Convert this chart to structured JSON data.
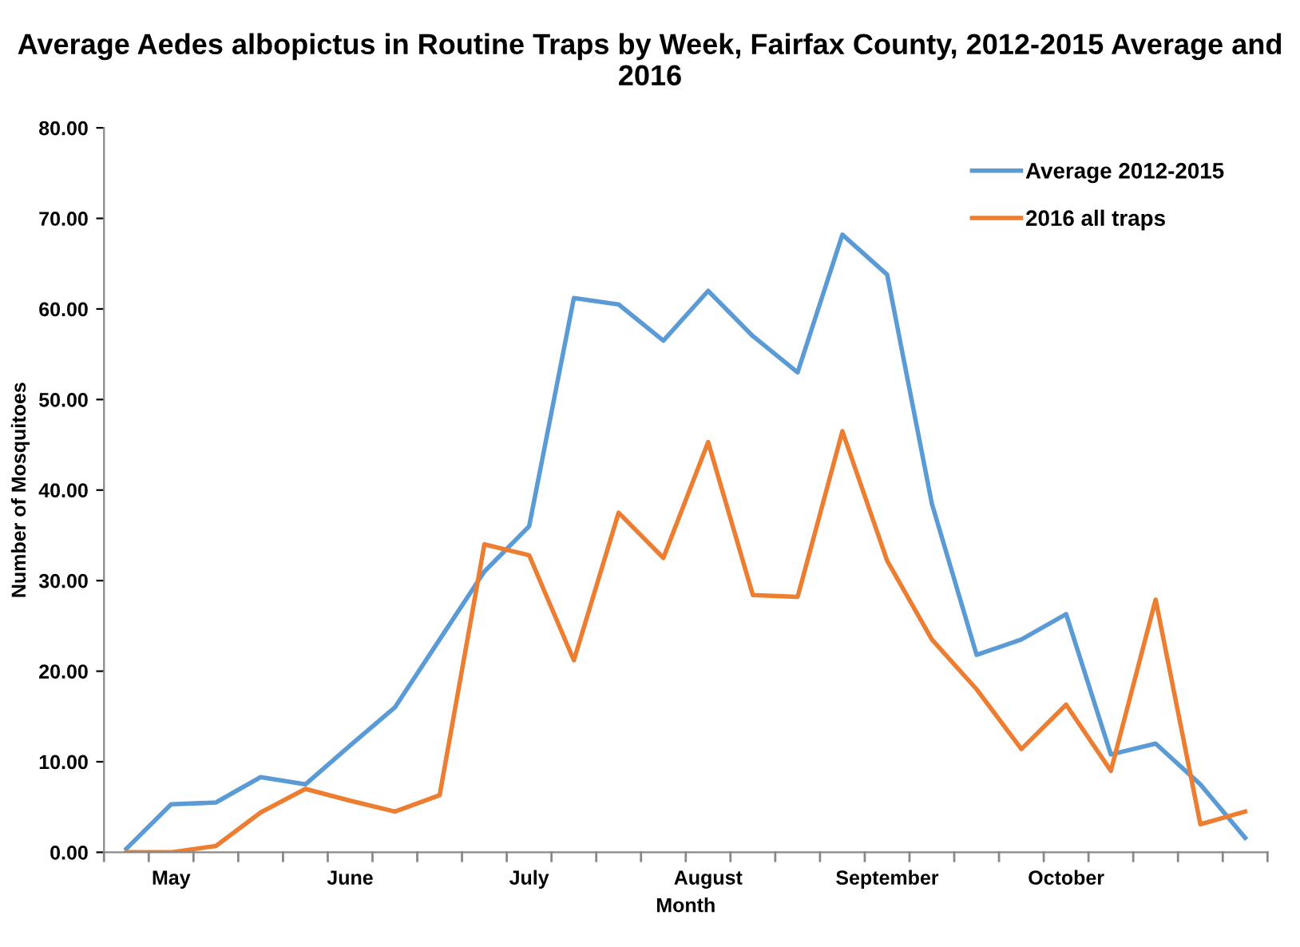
{
  "chart_data": {
    "type": "line",
    "title": "Average Aedes albopictus in Routine Traps by Week, Fairfax County, 2012-2015 Average and 2016",
    "xlabel": "Month",
    "ylabel": "Number of Mosquitoes",
    "categories": [
      null,
      "May",
      null,
      null,
      null,
      "June",
      null,
      null,
      null,
      "July",
      null,
      null,
      null,
      "August",
      null,
      null,
      null,
      "September",
      null,
      null,
      null,
      "October",
      null,
      null,
      null,
      null
    ],
    "series": [
      {
        "name": "Average 2012-2015",
        "color": "#5b9bd5",
        "values": [
          0.4,
          5.3,
          5.5,
          8.3,
          7.5,
          11.8,
          16,
          23.5,
          31,
          36,
          61.2,
          60.5,
          56.5,
          62,
          57,
          53,
          68.2,
          63.8,
          38.5,
          21.8,
          23.5,
          26.3,
          10.8,
          12,
          7.5,
          1.6
        ]
      },
      {
        "name": "2016 all traps",
        "color": "#ed7d31",
        "values": [
          0,
          0,
          0.7,
          4.4,
          7,
          5.7,
          4.5,
          6.3,
          34,
          32.8,
          21.2,
          37.5,
          32.5,
          45.3,
          28.4,
          28.2,
          46.5,
          32.2,
          23.5,
          18,
          11.4,
          16.3,
          9,
          27.9,
          3.1,
          4.5
        ]
      }
    ],
    "ylim": [
      0,
      80
    ],
    "yticks": [
      {
        "value": 0,
        "label": "0.00"
      },
      {
        "value": 10,
        "label": "10.00"
      },
      {
        "value": 20,
        "label": "20.00"
      },
      {
        "value": 30,
        "label": "30.00"
      },
      {
        "value": 40,
        "label": "40.00"
      },
      {
        "value": 50,
        "label": "50.00"
      },
      {
        "value": 60,
        "label": "60.00"
      },
      {
        "value": 70,
        "label": "70.00"
      },
      {
        "value": 80,
        "label": "80.00"
      }
    ],
    "grid": false,
    "legend": "top right",
    "line_style": "solid"
  }
}
